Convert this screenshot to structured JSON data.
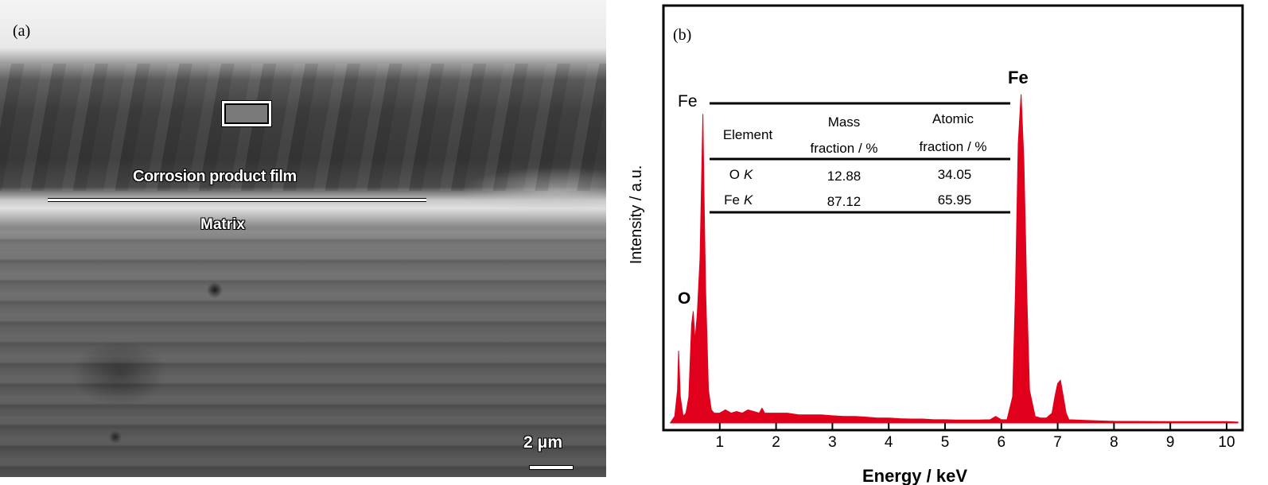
{
  "panel_a": {
    "label": "(a)",
    "film_label": "Corrosion product film",
    "matrix_label": "Matrix",
    "scale_bar": "2 μm"
  },
  "chart_data": {
    "type": "area",
    "panel_label": "(b)",
    "title": "",
    "xlabel": "Energy / keV",
    "ylabel": "Intensity / a.u.",
    "xlim": [
      0,
      10.3
    ],
    "ylim": [
      0,
      127
    ],
    "x_ticks": [
      "1",
      "2",
      "3",
      "4",
      "5",
      "6",
      "7",
      "8",
      "9",
      "10"
    ],
    "grid": false,
    "color": "#e0001b",
    "peak_labels": [
      {
        "text": "Fe",
        "energy": 0.7
      },
      {
        "text": "O",
        "energy": 0.52
      },
      {
        "text": "Fe",
        "energy": 6.4
      }
    ],
    "spectrum": [
      [
        0.12,
        0
      ],
      [
        0.2,
        2
      ],
      [
        0.25,
        10
      ],
      [
        0.27,
        22
      ],
      [
        0.3,
        8
      ],
      [
        0.35,
        2
      ],
      [
        0.4,
        3
      ],
      [
        0.45,
        8
      ],
      [
        0.5,
        30
      ],
      [
        0.53,
        34
      ],
      [
        0.56,
        25
      ],
      [
        0.6,
        33
      ],
      [
        0.65,
        50
      ],
      [
        0.7,
        94
      ],
      [
        0.72,
        70
      ],
      [
        0.75,
        40
      ],
      [
        0.8,
        10
      ],
      [
        0.85,
        4
      ],
      [
        0.9,
        3
      ],
      [
        1.0,
        3
      ],
      [
        1.1,
        4
      ],
      [
        1.2,
        3
      ],
      [
        1.3,
        3.5
      ],
      [
        1.4,
        3
      ],
      [
        1.5,
        4
      ],
      [
        1.6,
        3.5
      ],
      [
        1.7,
        3
      ],
      [
        1.75,
        4.5
      ],
      [
        1.8,
        3
      ],
      [
        2.0,
        3
      ],
      [
        2.2,
        3
      ],
      [
        2.4,
        2.5
      ],
      [
        2.6,
        2.5
      ],
      [
        2.8,
        2.5
      ],
      [
        3.0,
        2.2
      ],
      [
        3.2,
        2
      ],
      [
        3.4,
        2
      ],
      [
        3.6,
        1.8
      ],
      [
        3.8,
        1.5
      ],
      [
        4.0,
        1.5
      ],
      [
        4.2,
        1.3
      ],
      [
        4.4,
        1.2
      ],
      [
        4.6,
        1.2
      ],
      [
        4.8,
        1
      ],
      [
        5.0,
        1
      ],
      [
        5.2,
        0.9
      ],
      [
        5.4,
        0.9
      ],
      [
        5.6,
        0.9
      ],
      [
        5.8,
        1
      ],
      [
        5.9,
        2
      ],
      [
        6.0,
        1
      ],
      [
        6.1,
        1
      ],
      [
        6.2,
        8
      ],
      [
        6.25,
        40
      ],
      [
        6.3,
        85
      ],
      [
        6.35,
        100
      ],
      [
        6.4,
        80
      ],
      [
        6.45,
        40
      ],
      [
        6.5,
        10
      ],
      [
        6.6,
        2
      ],
      [
        6.7,
        1.5
      ],
      [
        6.8,
        1.5
      ],
      [
        6.9,
        3
      ],
      [
        6.95,
        8
      ],
      [
        7.0,
        12
      ],
      [
        7.05,
        13
      ],
      [
        7.1,
        8
      ],
      [
        7.15,
        3
      ],
      [
        7.2,
        1
      ],
      [
        7.5,
        0.8
      ],
      [
        8.0,
        0.5
      ],
      [
        9.0,
        0.4
      ],
      [
        10.0,
        0.4
      ],
      [
        10.2,
        0.3
      ]
    ],
    "table": {
      "headers": [
        "Element",
        [
          "Mass",
          "fraction / %"
        ],
        [
          "Atomic",
          "fraction / %"
        ]
      ],
      "rows": [
        {
          "element": "O",
          "line": "K",
          "mass": "12.88",
          "atomic": "34.05"
        },
        {
          "element": "Fe",
          "line": "K",
          "mass": "87.12",
          "atomic": "65.95"
        }
      ]
    }
  }
}
